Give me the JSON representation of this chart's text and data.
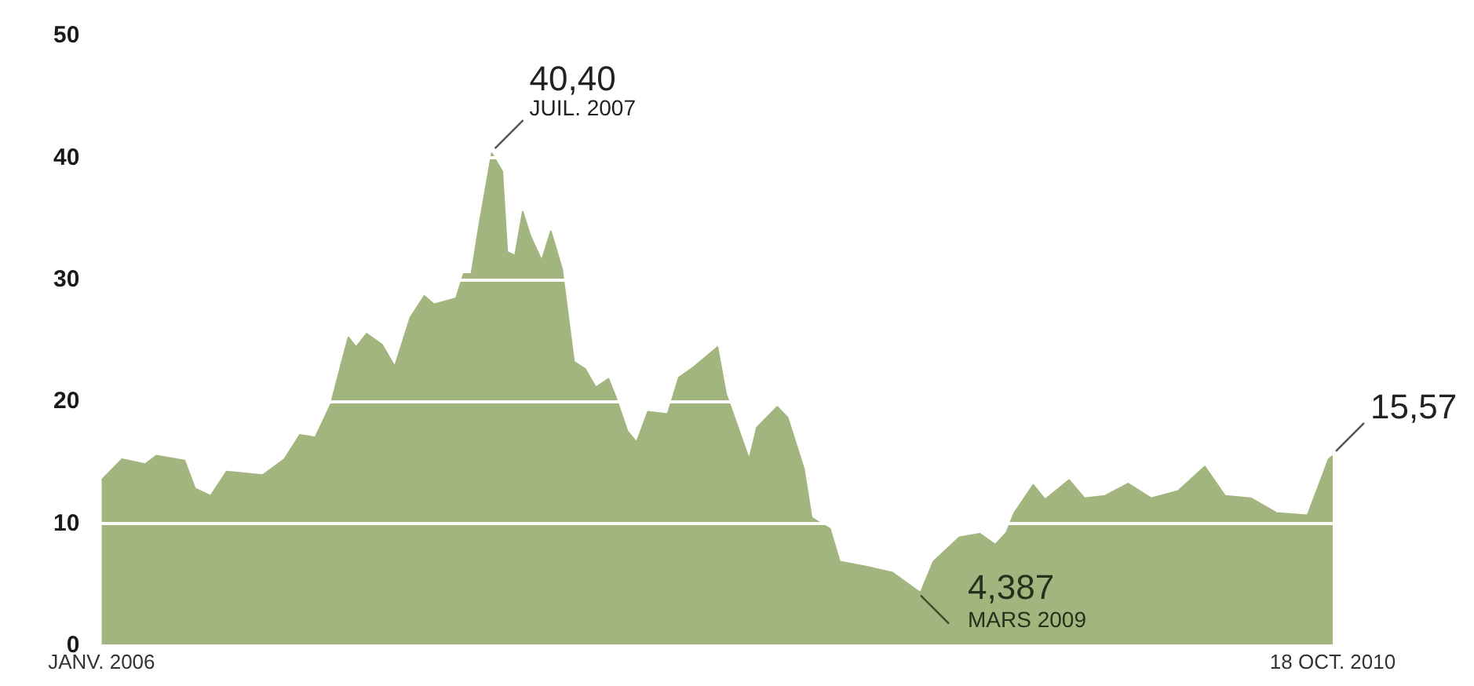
{
  "chart_data": {
    "type": "area",
    "x": [
      "2006-01-01",
      "2006-01-30",
      "2006-03-04",
      "2006-03-20",
      "2006-04-29",
      "2006-05-14",
      "2006-06-05",
      "2006-06-28",
      "2006-08-18",
      "2006-09-18",
      "2006-10-10",
      "2006-11-01",
      "2006-11-23",
      "2006-12-07",
      "2006-12-18",
      "2006-12-29",
      "2007-01-13",
      "2007-02-04",
      "2007-02-22",
      "2007-03-16",
      "2007-04-05",
      "2007-04-19",
      "2007-05-20",
      "2007-05-31",
      "2007-06-11",
      "2007-06-22",
      "2007-07-10",
      "2007-07-25",
      "2007-08-01",
      "2007-08-12",
      "2007-08-23",
      "2007-09-03",
      "2007-09-19",
      "2007-10-02",
      "2007-10-18",
      "2007-11-04",
      "2007-11-20",
      "2007-12-05",
      "2007-12-23",
      "2008-01-03",
      "2008-01-19",
      "2008-02-01",
      "2008-02-17",
      "2008-03-16",
      "2008-04-01",
      "2008-04-23",
      "2008-05-26",
      "2008-06-07",
      "2008-07-10",
      "2008-07-21",
      "2008-08-19",
      "2008-09-03",
      "2008-09-26",
      "2008-10-07",
      "2008-11-02",
      "2008-11-16",
      "2008-12-23",
      "2009-01-30",
      "2009-03-07",
      "2009-03-11",
      "2009-03-29",
      "2009-05-05",
      "2009-06-03",
      "2009-06-25",
      "2009-07-11",
      "2009-07-22",
      "2009-08-18",
      "2009-09-04",
      "2009-10-08",
      "2009-10-30",
      "2009-11-28",
      "2009-12-31",
      "2010-02-02",
      "2010-03-12",
      "2010-04-19",
      "2010-05-18",
      "2010-06-24",
      "2010-07-30",
      "2010-09-12",
      "2010-10-01",
      "2010-10-12",
      "2010-10-18"
    ],
    "values": [
      13.6,
      15.3,
      14.9,
      15.6,
      15.2,
      12.9,
      12.3,
      14.3,
      14.0,
      15.3,
      17.3,
      17.1,
      19.8,
      22.9,
      25.3,
      24.5,
      25.6,
      24.7,
      22.9,
      26.9,
      28.7,
      28.0,
      28.5,
      30.5,
      30.5,
      34.5,
      40.4,
      38.9,
      32.3,
      32.0,
      35.6,
      33.6,
      31.6,
      34.0,
      30.9,
      23.3,
      22.7,
      21.2,
      21.9,
      20.3,
      17.6,
      16.7,
      19.2,
      19.0,
      22.0,
      22.9,
      24.5,
      20.7,
      15.3,
      17.9,
      19.6,
      18.7,
      14.5,
      10.5,
      9.6,
      6.9,
      6.5,
      6.0,
      4.5,
      4.387,
      6.9,
      8.9,
      9.2,
      8.3,
      9.3,
      10.9,
      13.2,
      12.0,
      13.6,
      12.1,
      12.3,
      13.3,
      12.1,
      12.7,
      14.7,
      12.3,
      12.1,
      10.9,
      10.7,
      13.6,
      15.3,
      15.57
    ],
    "color": "#a3b57e",
    "xlim": [
      "2006-01-01",
      "2010-10-18"
    ],
    "xticks": [
      {
        "value": "2006-01-01",
        "label": "JANV. 2006"
      },
      {
        "value": "2010-10-18",
        "label": "18 OCT. 2010"
      }
    ],
    "ylim": [
      0,
      50
    ],
    "yticks": [
      0,
      10,
      20,
      30,
      40,
      50
    ],
    "grid": "y",
    "legend": false,
    "annotations": [
      {
        "text": "40,40",
        "x": "2007-07-10",
        "y": 40.4
      },
      {
        "text": "JUIL. 2007",
        "x": "2007-07-10",
        "y": 40.4
      },
      {
        "text": "4,387",
        "x": "2009-03-11",
        "y": 4.387
      },
      {
        "text": "MARS 2009",
        "x": "2009-03-11",
        "y": 4.387
      },
      {
        "text": "15,57",
        "x": "2010-10-18",
        "y": 15.57
      }
    ]
  }
}
